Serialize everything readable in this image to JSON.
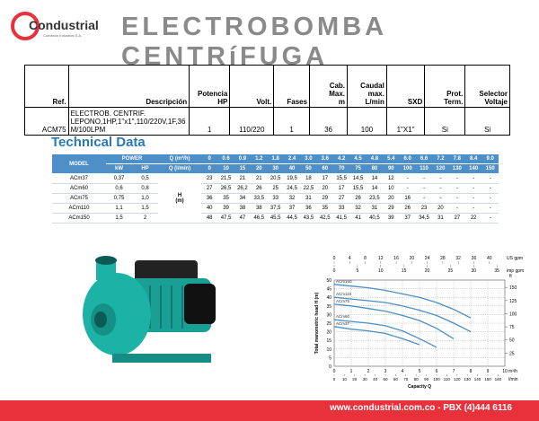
{
  "header": {
    "logo": "Condustrial",
    "logo_tagline": "Comercio Industrial S.A.",
    "title": "ELECTROBOMBA CENTRíFUGA"
  },
  "product_table": {
    "columns": [
      "Ref.",
      "Descripción",
      "Potencia\nHP",
      "Volt.",
      "Fases",
      "Cab. Max.\nm",
      "Caudal\nmax.\nL/min",
      "SXD",
      "Prot.\nTerm.",
      "Selector\nVoltaje"
    ],
    "rows": [
      [
        "ACM75",
        "ELECTROB. CENTRIF. LEPONO,1HP,1\"x1\",110/220V,1F,36 M/100LPM",
        "1",
        "110/220",
        "1",
        "36",
        "100",
        "1\"X1\"",
        "Si",
        "Si"
      ]
    ]
  },
  "technical_data": {
    "title": "Technical Data",
    "model_label": "MODEL",
    "power_label": "POWER",
    "power_units": [
      "kW",
      "HP"
    ],
    "q_m3h_label": "Q (m³/h)",
    "q_lmin_label": "Q (l/min)",
    "q_m3h": [
      "0",
      "0.6",
      "0.9",
      "1.2",
      "1.8",
      "2.4",
      "3.0",
      "3.6",
      "4.2",
      "4.5",
      "4.8",
      "5.4",
      "6.0",
      "6.6",
      "7.2",
      "7.8",
      "8.4",
      "9.0"
    ],
    "q_lmin": [
      "0",
      "10",
      "15",
      "20",
      "30",
      "40",
      "50",
      "60",
      "70",
      "75",
      "80",
      "90",
      "100",
      "110",
      "120",
      "130",
      "140",
      "150"
    ],
    "head_label": "H\n(m)",
    "rows": [
      {
        "model": "ACm37",
        "kw": "0,37",
        "hp": "0,5",
        "heads": [
          "23",
          "21,5",
          "21",
          "21",
          "20,5",
          "19,5",
          "18",
          "17",
          "15,5",
          "14,5",
          "14",
          "12",
          "-",
          "-",
          "-",
          "-",
          "-",
          "-"
        ]
      },
      {
        "model": "ACm60",
        "kw": "0,6",
        "hp": "0,8",
        "heads": [
          "27",
          "26,5",
          "26,2",
          "26",
          "25",
          "24,5",
          "22,5",
          "20",
          "17",
          "15,5",
          "14",
          "10",
          "-",
          "-",
          "-",
          "-",
          "-",
          "-"
        ]
      },
      {
        "model": "ACm75",
        "kw": "0,75",
        "hp": "1,0",
        "heads": [
          "36",
          "35",
          "34",
          "33,5",
          "33",
          "32",
          "31",
          "29",
          "27",
          "26",
          "23,5",
          "20",
          "16",
          "-",
          "-",
          "-",
          "-",
          "-"
        ]
      },
      {
        "model": "ACm110",
        "kw": "1,1",
        "hp": "1,5",
        "heads": [
          "40",
          "39",
          "38",
          "38",
          "37,5",
          "37",
          "36",
          "35",
          "33",
          "32",
          "31",
          "29",
          "26",
          "23",
          "20",
          "-",
          "-",
          "-"
        ]
      },
      {
        "model": "ACm150",
        "kw": "1,5",
        "hp": "2",
        "heads": [
          "48",
          "47,5",
          "47",
          "46,5",
          "45,5",
          "44,5",
          "43,5",
          "42,5",
          "41,5",
          "41",
          "40,5",
          "39",
          "37",
          "34,5",
          "31",
          "27",
          "22",
          "-"
        ]
      }
    ]
  },
  "chart_data": {
    "type": "line",
    "y_label": "Total manometric head H (m)",
    "x_label": "Capacity Q",
    "x_unit": "m³/h",
    "x2_unit": "l/min",
    "x3_unit": "US gpm",
    "x4_unit": "imp gpm",
    "y2_unit": "ft",
    "x": [
      0,
      1,
      2,
      3,
      4,
      5,
      6,
      7,
      8
    ],
    "xlim": [
      0,
      10
    ],
    "xticks": [
      0,
      1,
      2,
      3,
      4,
      5,
      6,
      7,
      8,
      9,
      10
    ],
    "x2lim": [
      0,
      166.7
    ],
    "x2ticks": [
      0,
      10,
      20,
      30,
      40,
      50,
      60,
      70,
      80,
      90,
      100,
      110,
      120,
      130,
      140,
      150,
      160
    ],
    "x3lim": [
      0,
      44
    ],
    "x3ticks": [
      0,
      4,
      8,
      12,
      16,
      20,
      24,
      28,
      32,
      36,
      40
    ],
    "x4lim": [
      0,
      36.7
    ],
    "x4ticks": [
      0,
      5,
      10,
      15,
      20,
      25,
      30,
      35
    ],
    "ylim": [
      0,
      50
    ],
    "yticks": [
      0,
      5,
      10,
      15,
      20,
      25,
      30,
      35,
      40,
      45,
      50
    ],
    "y2lim": [
      0,
      164
    ],
    "y2ticks": [
      25,
      50,
      75,
      100,
      125,
      150
    ],
    "grid": true,
    "series": [
      {
        "name": "ACm150",
        "color": "#4a8fc4",
        "values": [
          47.5,
          46.5,
          45.5,
          44,
          42,
          40,
          37,
          33,
          28
        ]
      },
      {
        "name": "ACm110",
        "color": "#4a8fc4",
        "values": [
          40,
          39,
          38,
          37,
          35,
          32.5,
          29.5,
          25,
          20
        ]
      },
      {
        "name": "ACm75",
        "color": "#4a8fc4",
        "values": [
          36,
          35,
          33.5,
          32,
          29.5,
          26.5,
          22,
          16,
          null
        ]
      },
      {
        "name": "ACm60",
        "color": "#4a8fc4",
        "values": [
          27,
          26,
          25,
          23.5,
          20.5,
          16,
          11,
          null,
          null
        ]
      },
      {
        "name": "ACm37",
        "color": "#4a8fc4",
        "values": [
          23,
          21.5,
          20.5,
          19,
          16,
          12.5,
          null,
          null,
          null
        ]
      }
    ]
  },
  "footer": {
    "text": "www.condustrial.com.co - PBX (4)444 6116"
  }
}
